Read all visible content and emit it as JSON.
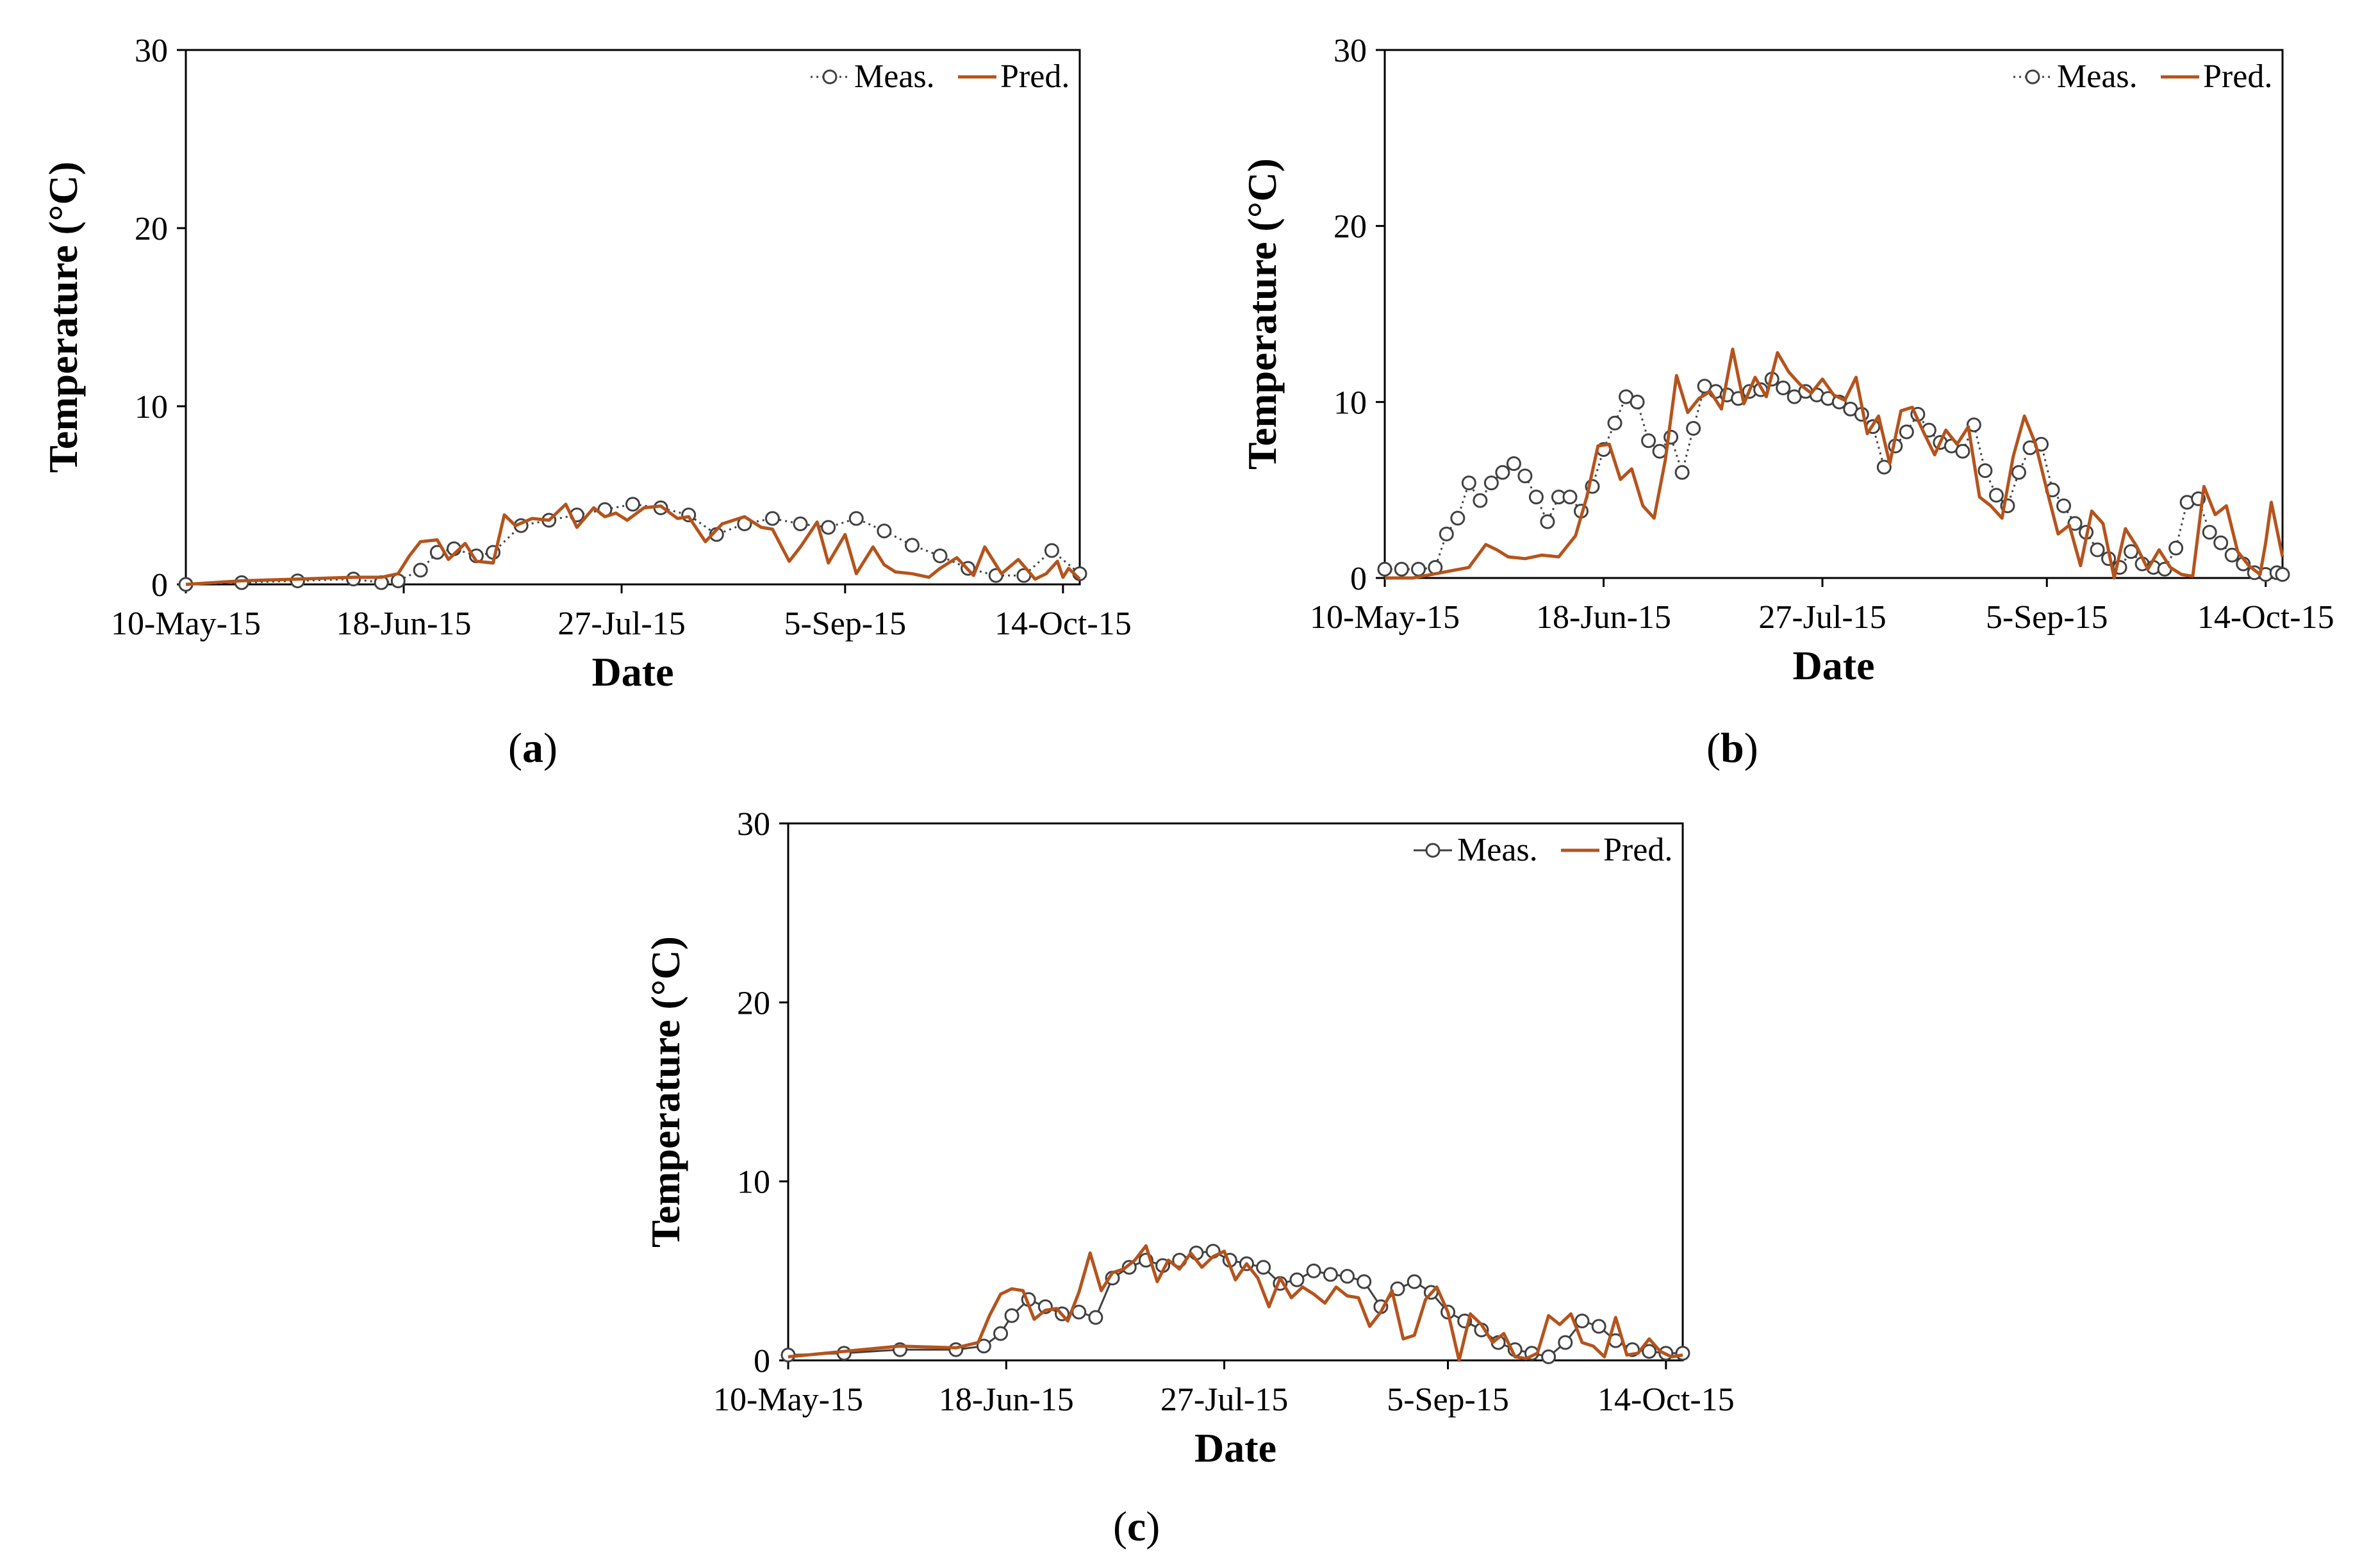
{
  "figure": {
    "panel_labels": [
      "(a)",
      "(b)",
      "(c)"
    ],
    "colors": {
      "measured": "#404040",
      "predicted": "#b5531c",
      "axis": "#000000"
    }
  },
  "chart_data": [
    {
      "panel": "(a)",
      "type": "line",
      "title": "",
      "xlabel": "Date",
      "ylabel": "Temperature (°C)",
      "ylim": [
        0,
        30
      ],
      "yticks": [
        0,
        10,
        20,
        30
      ],
      "xlim": [
        0,
        160
      ],
      "xticks": [
        0,
        39,
        78,
        118,
        157
      ],
      "xtick_labels": [
        "10-May-15",
        "18-Jun-15",
        "27-Jul-15",
        "5-Sep-15",
        "14-Oct-15"
      ],
      "legend": {
        "position": "top-right",
        "entries": [
          "Meas.",
          "Pred."
        ]
      },
      "series": [
        {
          "name": "Meas.",
          "marker": "circle",
          "line": "dotted",
          "x": [
            0,
            10,
            20,
            30,
            35,
            38,
            42,
            45,
            48,
            52,
            55,
            60,
            65,
            70,
            75,
            80,
            85,
            90,
            95,
            100,
            105,
            110,
            115,
            120,
            125,
            130,
            135,
            140,
            145,
            150,
            155,
            160
          ],
          "y": [
            0,
            0.1,
            0.2,
            0.3,
            0.1,
            0.2,
            0.8,
            1.8,
            2.0,
            1.6,
            1.8,
            3.3,
            3.6,
            3.9,
            4.2,
            4.5,
            4.3,
            3.9,
            2.8,
            3.4,
            3.7,
            3.4,
            3.2,
            3.7,
            3.0,
            2.2,
            1.6,
            0.9,
            0.5,
            0.5,
            1.9,
            0.6
          ]
        },
        {
          "name": "Pred.",
          "marker": "none",
          "line": "solid",
          "x": [
            0,
            10,
            20,
            30,
            35,
            38,
            40,
            42,
            45,
            47,
            50,
            52,
            55,
            57,
            59,
            62,
            65,
            68,
            70,
            73,
            75,
            77,
            79,
            82,
            85,
            88,
            90,
            93,
            96,
            100,
            103,
            105,
            108,
            110,
            113,
            115,
            118,
            120,
            123,
            125,
            127,
            130,
            133,
            135,
            138,
            141,
            143,
            146,
            149,
            152,
            154,
            156,
            157,
            158,
            160
          ],
          "y": [
            0,
            0.2,
            0.3,
            0.4,
            0.4,
            0.6,
            1.6,
            2.4,
            2.5,
            1.4,
            2.3,
            1.3,
            1.2,
            3.9,
            3.3,
            3.7,
            3.6,
            4.5,
            3.2,
            4.3,
            3.8,
            4.0,
            3.6,
            4.3,
            4.4,
            3.7,
            3.8,
            2.4,
            3.4,
            3.8,
            3.2,
            3.1,
            1.3,
            2.1,
            3.5,
            1.2,
            2.8,
            0.6,
            2.1,
            1.1,
            0.7,
            0.6,
            0.4,
            0.9,
            1.5,
            0.5,
            2.1,
            0.6,
            1.4,
            0.3,
            0.6,
            1.3,
            0.4,
            0.9,
            0.3
          ]
        }
      ]
    },
    {
      "panel": "(b)",
      "type": "line",
      "title": "",
      "xlabel": "Date",
      "ylabel": "Temperature (°C)",
      "ylim": [
        0,
        30
      ],
      "yticks": [
        0,
        10,
        20,
        30
      ],
      "xlim": [
        0,
        160
      ],
      "xticks": [
        0,
        39,
        78,
        118,
        157
      ],
      "xtick_labels": [
        "10-May-15",
        "18-Jun-15",
        "27-Jul-15",
        "5-Sep-15",
        "14-Oct-15"
      ],
      "legend": {
        "position": "top-right",
        "entries": [
          "Meas.",
          "Pred."
        ]
      },
      "series": [
        {
          "name": "Meas.",
          "marker": "circle",
          "line": "dotted",
          "x": [
            0,
            3,
            6,
            9,
            11,
            13,
            15,
            17,
            19,
            21,
            23,
            25,
            27,
            29,
            31,
            33,
            35,
            37,
            39,
            41,
            43,
            45,
            47,
            49,
            51,
            53,
            55,
            57,
            59,
            61,
            63,
            65,
            67,
            69,
            71,
            73,
            75,
            77,
            79,
            81,
            83,
            85,
            87,
            89,
            91,
            93,
            95,
            97,
            99,
            101,
            103,
            105,
            107,
            109,
            111,
            113,
            115,
            117,
            119,
            121,
            123,
            125,
            127,
            129,
            131,
            133,
            135,
            137,
            139,
            141,
            143,
            145,
            147,
            149,
            151,
            153,
            155,
            157,
            159,
            160
          ],
          "y": [
            0.5,
            0.5,
            0.5,
            0.6,
            2.5,
            3.4,
            5.4,
            4.4,
            5.4,
            6.0,
            6.5,
            5.8,
            4.6,
            3.2,
            4.6,
            4.6,
            3.8,
            5.2,
            7.3,
            8.8,
            10.3,
            10.0,
            7.8,
            7.2,
            8.0,
            6.0,
            8.5,
            10.9,
            10.6,
            10.4,
            10.2,
            10.6,
            10.7,
            11.3,
            10.8,
            10.3,
            10.6,
            10.4,
            10.2,
            10.0,
            9.6,
            9.3,
            8.6,
            6.3,
            7.5,
            8.3,
            9.3,
            8.4,
            7.7,
            7.5,
            7.2,
            8.7,
            6.1,
            4.7,
            4.1,
            6.0,
            7.4,
            7.6,
            5.0,
            4.1,
            3.1,
            2.6,
            1.6,
            1.1,
            0.6,
            1.5,
            0.8,
            0.6,
            0.5,
            1.7,
            4.3,
            4.5,
            2.6,
            2.0,
            1.3,
            0.8,
            0.3,
            0.2,
            0.3,
            0.2
          ]
        },
        {
          "name": "Pred.",
          "marker": "none",
          "line": "solid",
          "x": [
            0,
            5,
            10,
            15,
            18,
            20,
            22,
            25,
            28,
            31,
            34,
            36,
            38,
            40,
            42,
            44,
            46,
            48,
            50,
            52,
            54,
            56,
            58,
            60,
            62,
            64,
            66,
            68,
            70,
            72,
            74,
            76,
            78,
            80,
            82,
            84,
            86,
            88,
            90,
            92,
            94,
            96,
            98,
            100,
            102,
            104,
            106,
            108,
            110,
            112,
            114,
            116,
            118,
            120,
            122,
            124,
            126,
            128,
            130,
            132,
            134,
            136,
            138,
            140,
            142,
            144,
            146,
            148,
            150,
            152,
            154,
            156,
            157,
            158,
            160
          ],
          "y": [
            0,
            0,
            0.3,
            0.6,
            1.9,
            1.6,
            1.2,
            1.1,
            1.3,
            1.2,
            2.4,
            4.6,
            7.5,
            7.6,
            5.6,
            6.2,
            4.1,
            3.4,
            6.7,
            11.5,
            9.4,
            10.2,
            10.6,
            9.6,
            13.0,
            9.9,
            11.4,
            10.3,
            12.8,
            11.7,
            11.0,
            10.5,
            11.3,
            10.4,
            10.1,
            11.4,
            8.2,
            9.2,
            6.5,
            9.5,
            9.7,
            8.3,
            7.0,
            8.4,
            7.6,
            8.6,
            4.6,
            4.1,
            3.4,
            6.9,
            9.2,
            7.6,
            5.0,
            2.5,
            3.0,
            0.7,
            3.8,
            3.1,
            0.0,
            2.8,
            1.8,
            0.5,
            1.6,
            0.6,
            0.2,
            0.1,
            5.2,
            3.6,
            4.1,
            1.5,
            0.7,
            0.2,
            2.0,
            4.3,
            1.2
          ]
        }
      ]
    },
    {
      "panel": "(c)",
      "type": "line",
      "title": "",
      "xlabel": "Date",
      "ylabel": "Temperature (°C)",
      "ylim": [
        0,
        30
      ],
      "yticks": [
        0,
        10,
        20,
        30
      ],
      "xlim": [
        0,
        160
      ],
      "xticks": [
        0,
        39,
        78,
        118,
        157
      ],
      "xtick_labels": [
        "10-May-15",
        "18-Jun-15",
        "27-Jul-15",
        "5-Sep-15",
        "14-Oct-15"
      ],
      "legend": {
        "position": "top-right",
        "entries": [
          "Meas.",
          "Pred."
        ]
      },
      "series": [
        {
          "name": "Meas.",
          "marker": "circle",
          "line": "solid",
          "x": [
            0,
            10,
            20,
            30,
            35,
            38,
            40,
            43,
            46,
            49,
            52,
            55,
            58,
            61,
            64,
            67,
            70,
            73,
            76,
            79,
            82,
            85,
            88,
            91,
            94,
            97,
            100,
            103,
            106,
            109,
            112,
            115,
            118,
            121,
            124,
            127,
            130,
            133,
            136,
            139,
            142,
            145,
            148,
            151,
            154,
            157,
            160
          ],
          "y": [
            0.3,
            0.4,
            0.6,
            0.6,
            0.8,
            1.5,
            2.5,
            3.4,
            3.0,
            2.6,
            2.7,
            2.4,
            4.6,
            5.2,
            5.6,
            5.3,
            5.6,
            6.0,
            6.1,
            5.6,
            5.4,
            5.2,
            4.3,
            4.5,
            5.0,
            4.8,
            4.7,
            4.4,
            3.0,
            4.0,
            4.4,
            3.8,
            2.7,
            2.2,
            1.7,
            1.0,
            0.6,
            0.4,
            0.2,
            1.0,
            2.2,
            1.9,
            1.1,
            0.6,
            0.5,
            0.4,
            0.4
          ]
        },
        {
          "name": "Pred.",
          "marker": "none",
          "line": "solid",
          "x": [
            0,
            10,
            20,
            30,
            34,
            36,
            38,
            40,
            42,
            44,
            46,
            48,
            50,
            52,
            54,
            56,
            58,
            60,
            62,
            64,
            66,
            68,
            70,
            72,
            74,
            76,
            78,
            80,
            82,
            84,
            86,
            88,
            90,
            92,
            94,
            96,
            98,
            100,
            102,
            104,
            106,
            108,
            110,
            112,
            114,
            116,
            118,
            120,
            122,
            124,
            126,
            128,
            130,
            132,
            134,
            136,
            138,
            140,
            142,
            144,
            146,
            148,
            150,
            152,
            154,
            156,
            158,
            160
          ],
          "y": [
            0.2,
            0.5,
            0.8,
            0.7,
            1.0,
            2.5,
            3.7,
            4.0,
            3.9,
            2.3,
            2.8,
            2.9,
            2.2,
            3.8,
            6.0,
            3.9,
            4.9,
            5.1,
            5.6,
            6.4,
            4.4,
            5.6,
            5.1,
            6.0,
            5.2,
            5.8,
            6.1,
            4.5,
            5.4,
            4.6,
            3.0,
            4.6,
            3.5,
            4.1,
            3.7,
            3.2,
            4.1,
            3.6,
            3.5,
            1.9,
            2.7,
            3.9,
            1.2,
            1.4,
            3.4,
            4.1,
            2.7,
            0.0,
            2.6,
            2.0,
            1.0,
            1.5,
            0.2,
            0.1,
            0.4,
            2.5,
            2.0,
            2.6,
            1.0,
            0.8,
            0.2,
            2.4,
            0.3,
            0.4,
            1.2,
            0.5,
            0.2,
            0.3
          ]
        }
      ]
    }
  ]
}
